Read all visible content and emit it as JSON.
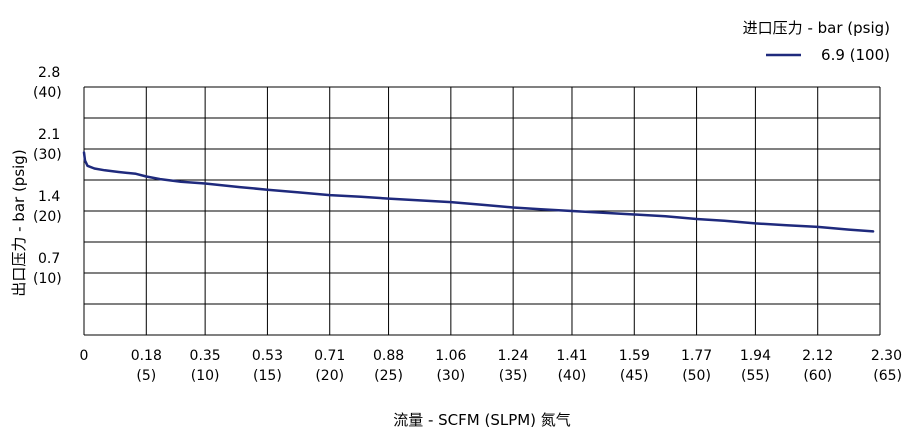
{
  "chart_data": {
    "type": "line",
    "title": "",
    "legend": {
      "title": "进口压力 - bar (psig)",
      "position": "top-right",
      "entries": [
        "6.9 (100)"
      ]
    },
    "xlabel": "流量 - SCFM (SLPM) 氮气",
    "ylabel": "出口压力 - bar (psig)",
    "xlim": [
      0,
      2.3
    ],
    "ylim": [
      0,
      2.8
    ],
    "grid": true,
    "x_ticks": [
      {
        "value": 0,
        "line1": "0",
        "line2": ""
      },
      {
        "value": 0.18,
        "line1": "0.18",
        "line2": "(5)"
      },
      {
        "value": 0.35,
        "line1": "0.35",
        "line2": "(10)"
      },
      {
        "value": 0.53,
        "line1": "0.53",
        "line2": "(15)"
      },
      {
        "value": 0.71,
        "line1": "0.71",
        "line2": "(20)"
      },
      {
        "value": 0.88,
        "line1": "0.88",
        "line2": "(25)"
      },
      {
        "value": 1.06,
        "line1": "1.06",
        "line2": "(30)"
      },
      {
        "value": 1.24,
        "line1": "1.24",
        "line2": "(35)"
      },
      {
        "value": 1.41,
        "line1": "1.41",
        "line2": "(40)"
      },
      {
        "value": 1.59,
        "line1": "1.59",
        "line2": "(45)"
      },
      {
        "value": 1.77,
        "line1": "1.77",
        "line2": "(50)"
      },
      {
        "value": 1.94,
        "line1": "1.94",
        "line2": "(55)"
      },
      {
        "value": 2.12,
        "line1": "2.12",
        "line2": "(60)"
      },
      {
        "value": 2.3,
        "line1": "2.30",
        "line2": "(65)"
      }
    ],
    "y_ticks": [
      {
        "value": 2.8,
        "line1": "2.8",
        "line2": "(40)"
      },
      {
        "value": 2.1,
        "line1": "2.1",
        "line2": "(30)"
      },
      {
        "value": 1.4,
        "line1": "1.4",
        "line2": "(20)"
      },
      {
        "value": 0.7,
        "line1": "0.7",
        "line2": "(10)"
      }
    ],
    "y_gridlines": [
      0,
      0.35,
      0.7,
      1.05,
      1.4,
      1.75,
      2.1,
      2.45,
      2.8
    ],
    "series": [
      {
        "name": "6.9 (100)",
        "color": "#1f2a7d",
        "x": [
          0,
          0.003,
          0.01,
          0.03,
          0.06,
          0.1,
          0.15,
          0.18,
          0.22,
          0.28,
          0.35,
          0.45,
          0.53,
          0.62,
          0.71,
          0.8,
          0.88,
          0.97,
          1.06,
          1.15,
          1.24,
          1.32,
          1.41,
          1.5,
          1.59,
          1.68,
          1.77,
          1.85,
          1.94,
          2.03,
          2.12,
          2.21,
          2.28
        ],
        "y": [
          2.06,
          1.97,
          1.91,
          1.88,
          1.86,
          1.84,
          1.82,
          1.79,
          1.76,
          1.73,
          1.71,
          1.67,
          1.64,
          1.61,
          1.58,
          1.56,
          1.54,
          1.52,
          1.5,
          1.47,
          1.44,
          1.42,
          1.4,
          1.38,
          1.36,
          1.34,
          1.31,
          1.29,
          1.26,
          1.24,
          1.22,
          1.19,
          1.17
        ]
      }
    ]
  }
}
